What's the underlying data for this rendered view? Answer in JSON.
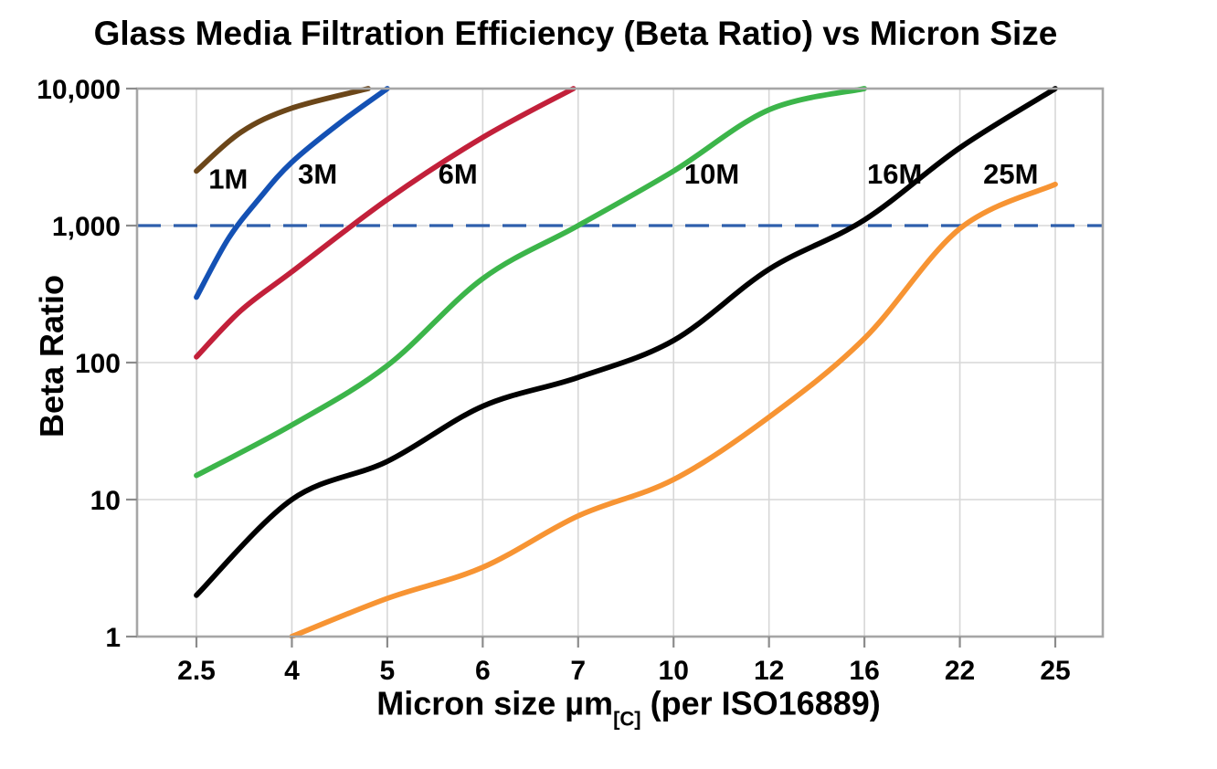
{
  "chart_data": {
    "type": "line",
    "title": "Glass Media Filtration Efficiency (Beta Ratio) vs Micron Size",
    "ylabel": "Beta Ratio",
    "xlabel": {
      "main": "Micron size µm",
      "subscript": "[C]",
      "suffix": " (per ISO16889)"
    },
    "x_axis": {
      "scale": "categorical",
      "categories": [
        "2.5",
        "4",
        "5",
        "6",
        "7",
        "10",
        "12",
        "16",
        "22",
        "25"
      ],
      "category_values": [
        2.5,
        4,
        5,
        6,
        7,
        10,
        12,
        16,
        22,
        25
      ]
    },
    "y_axis": {
      "scale": "log",
      "min": 1,
      "max": 10000,
      "tick_values": [
        1,
        10,
        100,
        1000,
        10000
      ],
      "tick_labels": [
        "1",
        "10",
        "100",
        "1,000",
        "10,000"
      ]
    },
    "grid": true,
    "legend_position": "inline-labels",
    "reference_line": {
      "value": 1000,
      "style": "dashed",
      "color": "#2E5FAC"
    },
    "series": [
      {
        "name": "1M",
        "color": "#6B4619",
        "label_at": {
          "micron": 3.0,
          "beta": 2200
        },
        "points": [
          [
            2.5,
            2500
          ],
          [
            3.2,
            4800
          ],
          [
            4,
            7200
          ],
          [
            4.8,
            10000
          ]
        ]
      },
      {
        "name": "3M",
        "color": "#1451B4",
        "label_at": {
          "micron": 4.27,
          "beta": 2400
        },
        "points": [
          [
            2.5,
            300
          ],
          [
            3,
            800
          ],
          [
            3.5,
            1600
          ],
          [
            4,
            2900
          ],
          [
            4.5,
            5600
          ],
          [
            5,
            10000
          ]
        ]
      },
      {
        "name": "6M",
        "color": "#C2203A",
        "label_at": {
          "micron": 5.74,
          "beta": 2400
        },
        "points": [
          [
            2.5,
            110
          ],
          [
            3.2,
            240
          ],
          [
            4,
            460
          ],
          [
            5,
            1550
          ],
          [
            6,
            4400
          ],
          [
            6.95,
            10000
          ]
        ]
      },
      {
        "name": "10M",
        "color": "#3CB54A",
        "label_at": {
          "micron": 10.8,
          "beta": 2400
        },
        "points": [
          [
            2.5,
            15
          ],
          [
            4,
            35
          ],
          [
            5,
            95
          ],
          [
            6,
            410
          ],
          [
            7,
            1000
          ],
          [
            10,
            2500
          ],
          [
            12,
            7000
          ],
          [
            16,
            10000
          ]
        ]
      },
      {
        "name": "16M",
        "color": "#000000",
        "label_at": {
          "micron": 17.9,
          "beta": 2400
        },
        "points": [
          [
            2.5,
            2
          ],
          [
            4,
            10
          ],
          [
            5,
            19
          ],
          [
            6,
            48
          ],
          [
            7,
            78
          ],
          [
            10,
            145
          ],
          [
            12,
            480
          ],
          [
            16,
            1100
          ],
          [
            22,
            3700
          ],
          [
            25,
            10000
          ]
        ]
      },
      {
        "name": "25M",
        "color": "#F79433",
        "label_at": {
          "micron": 23.6,
          "beta": 2400
        },
        "points": [
          [
            4,
            1
          ],
          [
            5,
            1.9
          ],
          [
            6,
            3.2
          ],
          [
            7,
            7.6
          ],
          [
            10,
            14
          ],
          [
            12,
            40
          ],
          [
            16,
            150
          ],
          [
            22,
            950
          ],
          [
            25,
            2000
          ]
        ]
      }
    ],
    "style_colors": {
      "grid": "#D7D7D7",
      "axis_border": "#A6A6A6",
      "tick": "#8C8C8C",
      "text": "#000000"
    }
  }
}
